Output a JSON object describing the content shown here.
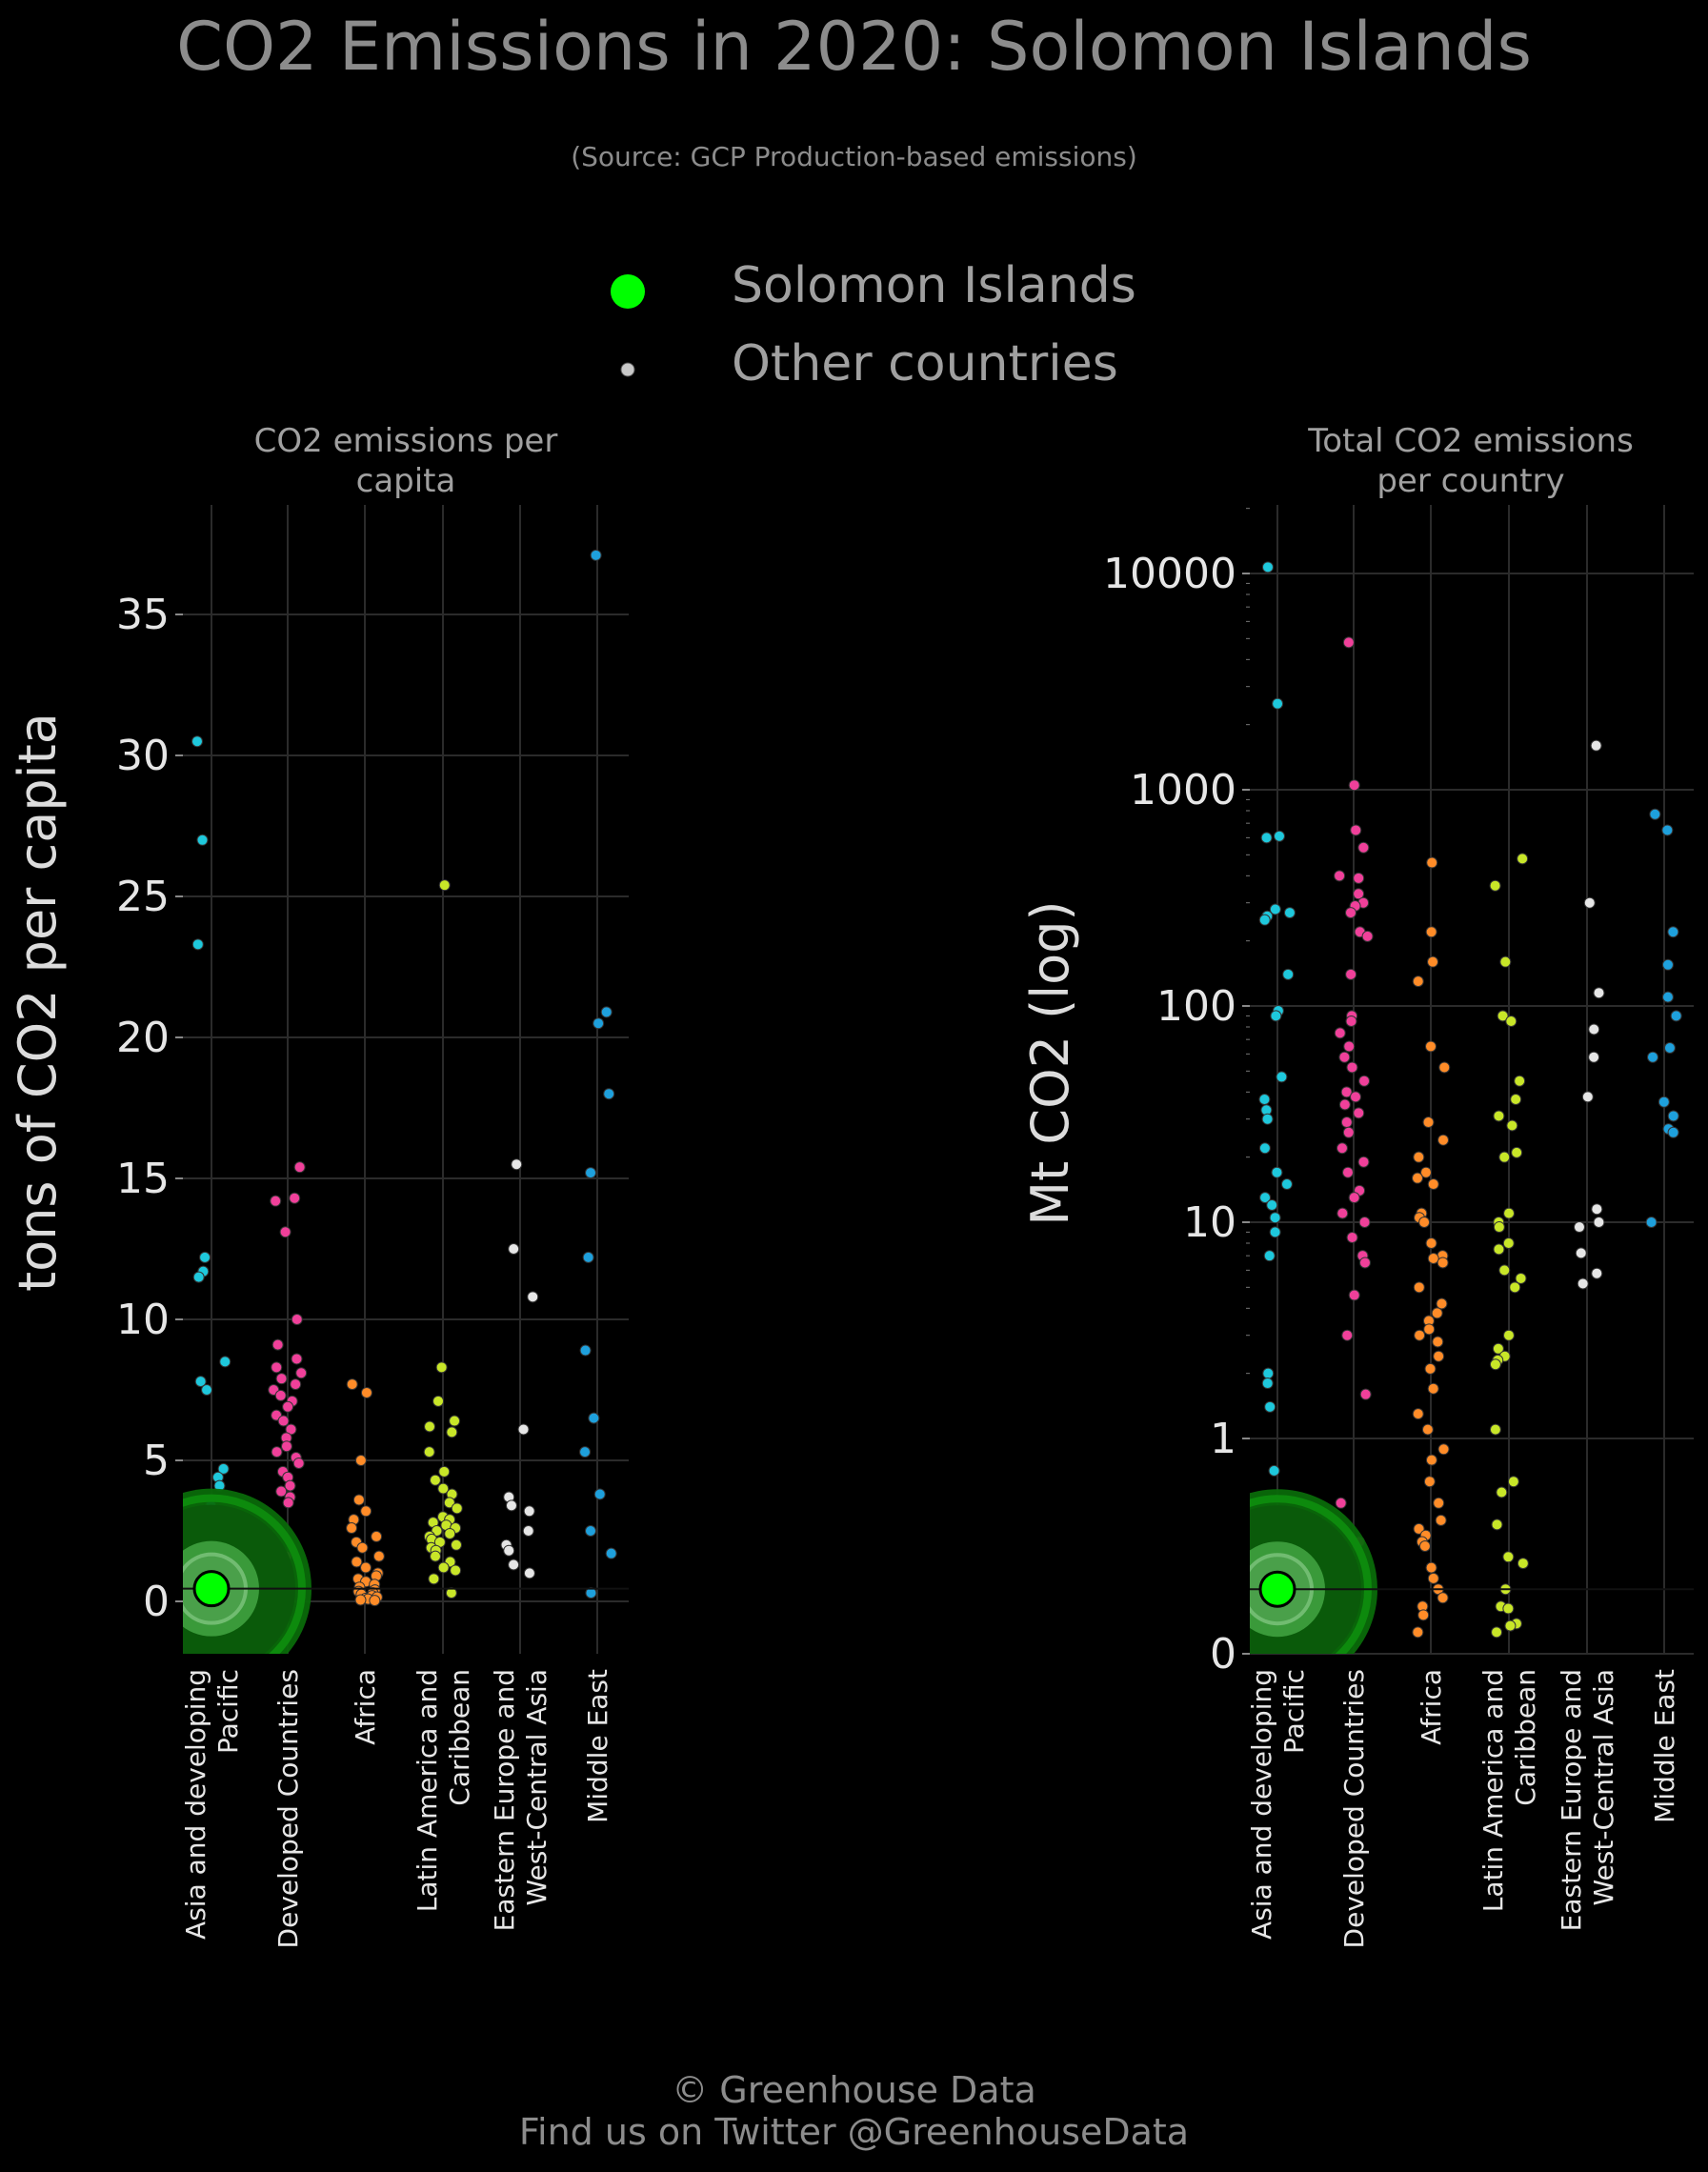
{
  "title": "CO2 Emissions in 2020: Solomon Islands",
  "subtitle": "(Source: GCP Production-based emissions)",
  "legend": {
    "highlight_label": "Solomon Islands",
    "others_label": "Other countries"
  },
  "footer": {
    "line1": "© Greenhouse Data",
    "line2": "Find us on Twitter @GreenhouseData"
  },
  "colors": {
    "highlight": "#00ff00",
    "Asia and developing Pacific": "#1ec8dc",
    "Developed Countries": "#f0409a",
    "Africa": "#ff8c28",
    "Latin America and Caribbean": "#c8e628",
    "Eastern Europe and West-Central Asia": "#e6e6e6",
    "Middle East": "#1ea0dc"
  },
  "chart_data": [
    {
      "type": "scatter",
      "title": "CO2 emissions per capita",
      "ylabel": "tons of CO2 per capita",
      "yscale": "linear",
      "ylim": [
        -1.8,
        38.9
      ],
      "yticks": [
        0,
        5,
        10,
        15,
        20,
        25,
        30,
        35
      ],
      "categories": [
        "Asia and developing Pacific",
        "Developed Countries",
        "Africa",
        "Latin America and Caribbean",
        "Eastern Europe and West-Central Asia",
        "Middle East"
      ],
      "category_labels": [
        [
          "Asia and developing",
          "Pacific"
        ],
        [
          "Developed Countries"
        ],
        [
          "Africa"
        ],
        [
          "Latin America and",
          "Caribbean"
        ],
        [
          "Eastern Europe and",
          "West-Central Asia"
        ],
        [
          "Middle East"
        ]
      ],
      "highlight": {
        "name": "Solomon Islands",
        "category": "Asia and developing Pacific",
        "value": 0.45
      },
      "series": [
        {
          "category": "Asia and developing Pacific",
          "values": [
            30.5,
            27.0,
            23.3,
            12.2,
            11.7,
            11.5,
            8.5,
            7.8,
            7.5,
            4.7,
            4.4,
            4.1,
            3.4,
            3.0,
            2.7,
            2.3,
            2.1,
            1.8,
            1.6,
            1.4,
            1.2,
            1.0,
            0.8,
            0.6,
            0.4,
            0.3
          ]
        },
        {
          "category": "Developed Countries",
          "values": [
            15.4,
            14.3,
            14.2,
            13.1,
            10.0,
            9.1,
            8.6,
            8.3,
            8.1,
            7.9,
            7.7,
            7.5,
            7.3,
            7.1,
            6.9,
            6.6,
            6.4,
            6.1,
            5.8,
            5.5,
            5.3,
            5.1,
            4.9,
            4.6,
            4.4,
            4.1,
            3.9,
            3.7,
            3.5,
            1.6
          ]
        },
        {
          "category": "Africa",
          "values": [
            7.7,
            7.4,
            5.0,
            3.6,
            3.2,
            2.9,
            2.6,
            2.3,
            2.1,
            1.9,
            1.6,
            1.4,
            1.2,
            1.0,
            0.9,
            0.8,
            0.7,
            0.6,
            0.5,
            0.4,
            0.35,
            0.3,
            0.25,
            0.2,
            0.15,
            0.1,
            0.08,
            0.05,
            0.03
          ]
        },
        {
          "category": "Latin America and Caribbean",
          "values": [
            25.4,
            8.3,
            7.1,
            6.4,
            6.2,
            6.0,
            5.3,
            4.6,
            4.3,
            4.0,
            3.8,
            3.5,
            3.3,
            3.0,
            2.9,
            2.8,
            2.7,
            2.6,
            2.5,
            2.4,
            2.3,
            2.2,
            2.1,
            2.0,
            1.9,
            1.8,
            1.6,
            1.4,
            1.2,
            1.1,
            0.8,
            0.3
          ]
        },
        {
          "category": "Eastern Europe and West-Central Asia",
          "values": [
            15.5,
            12.5,
            10.8,
            6.1,
            3.7,
            3.4,
            3.2,
            2.5,
            2.0,
            1.8,
            1.3,
            1.0
          ]
        },
        {
          "category": "Middle East",
          "values": [
            37.1,
            20.9,
            20.5,
            18.0,
            15.2,
            12.2,
            8.9,
            6.5,
            5.3,
            3.8,
            2.5,
            1.7,
            0.3
          ]
        }
      ]
    },
    {
      "type": "scatter",
      "title": "Total CO2 emissions per country",
      "ylabel": "Mt CO2 (log)",
      "yscale": "log",
      "ylim": [
        0.0,
        20000
      ],
      "yticks": [
        0,
        1,
        10,
        100,
        1000,
        10000
      ],
      "categories": [
        "Asia and developing Pacific",
        "Developed Countries",
        "Africa",
        "Latin America and Caribbean",
        "Eastern Europe and West-Central Asia",
        "Middle East"
      ],
      "category_labels": [
        [
          "Asia and developing",
          "Pacific"
        ],
        [
          "Developed Countries"
        ],
        [
          "Africa"
        ],
        [
          "Latin America and",
          "Caribbean"
        ],
        [
          "Eastern Europe and",
          "West-Central Asia"
        ],
        [
          "Middle East"
        ]
      ],
      "highlight": {
        "name": "Solomon Islands",
        "category": "Asia and developing Pacific",
        "value": 0.3
      },
      "series": [
        {
          "category": "Asia and developing Pacific",
          "values": [
            10700,
            2500,
            610,
            600,
            280,
            270,
            260,
            250,
            140,
            95,
            90,
            47,
            37,
            33,
            30,
            22,
            17,
            15,
            13,
            12,
            10.5,
            9.0,
            7.0,
            2.0,
            1.8,
            1.4,
            0.85,
            0.55,
            0.42,
            0.32,
            0.27,
            0.2,
            0.15
          ]
        },
        {
          "category": "Developed Countries",
          "values": [
            4800,
            1050,
            650,
            540,
            400,
            390,
            330,
            300,
            290,
            270,
            220,
            210,
            140,
            90,
            85,
            75,
            65,
            58,
            52,
            45,
            40,
            38,
            35,
            32,
            29,
            26,
            22,
            19,
            17,
            14,
            13,
            11,
            10,
            8.5,
            7.0,
            6.5,
            4.6,
            3.0,
            1.6,
            0.7,
            0.52
          ]
        },
        {
          "category": "Africa",
          "values": [
            460,
            220,
            160,
            130,
            65,
            52,
            29,
            24,
            20,
            17,
            16,
            15,
            11,
            10.5,
            10,
            8,
            7,
            6.8,
            6.5,
            5,
            4.2,
            3.8,
            3.5,
            3.2,
            3,
            2.8,
            2.4,
            2.1,
            1.7,
            1.3,
            1.1,
            0.95,
            0.9,
            0.8,
            0.7,
            0.62,
            0.58,
            0.55,
            0.52,
            0.5,
            0.4,
            0.35,
            0.3,
            0.26,
            0.22,
            0.18,
            0.1
          ]
        },
        {
          "category": "Latin America and Caribbean",
          "values": [
            480,
            360,
            160,
            90,
            85,
            45,
            37,
            31,
            28,
            21,
            20,
            11,
            10,
            9.5,
            8,
            7.5,
            6,
            5.5,
            5,
            3,
            2.6,
            2.4,
            2.3,
            2.2,
            1.1,
            0.8,
            0.75,
            0.6,
            0.45,
            0.42,
            0.3,
            0.22,
            0.21,
            0.14,
            0.13,
            0.1
          ]
        },
        {
          "category": "Eastern Europe and West-Central Asia",
          "values": [
            1600,
            300,
            115,
            78,
            58,
            38,
            11.5,
            10,
            9.5,
            7.2,
            5.8,
            5.2
          ]
        },
        {
          "category": "Middle East",
          "values": [
            770,
            650,
            220,
            155,
            110,
            90,
            64,
            58,
            36,
            31,
            27,
            26,
            10
          ]
        }
      ]
    }
  ]
}
